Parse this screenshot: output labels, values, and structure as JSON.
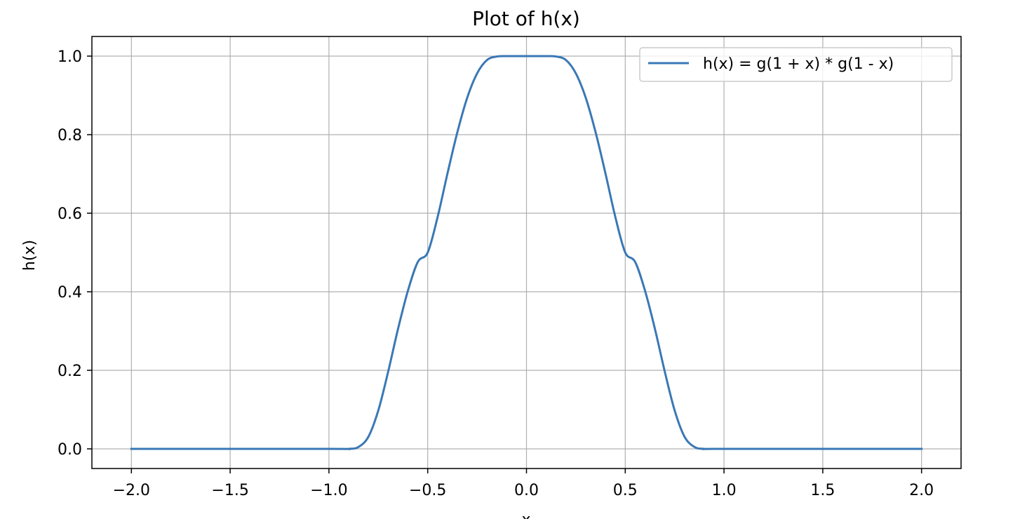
{
  "chart_data": {
    "type": "line",
    "title": "Plot of h(x)",
    "xlabel": "x",
    "ylabel": "h(x)",
    "xlim": [
      -2.2,
      2.2
    ],
    "ylim": [
      -0.05,
      1.05
    ],
    "xticks": [
      -2.0,
      -1.5,
      -1.0,
      -0.5,
      0.0,
      0.5,
      1.0,
      1.5,
      2.0
    ],
    "xtick_labels": [
      "−2.0",
      "−1.5",
      "−1.0",
      "−0.5",
      "0.0",
      "0.5",
      "1.0",
      "1.5",
      "2.0"
    ],
    "yticks": [
      0.0,
      0.2,
      0.4,
      0.6,
      0.8,
      1.0
    ],
    "ytick_labels": [
      "0.0",
      "0.2",
      "0.4",
      "0.6",
      "0.8",
      "1.0"
    ],
    "grid": true,
    "legend_position": "upper right",
    "series": [
      {
        "name": "h(x) = g(1 + x) * g(1 - x)",
        "color": "#3a78b5",
        "x": [
          -2.0,
          -1.0,
          -0.9,
          -0.85,
          -0.8,
          -0.75,
          -0.7,
          -0.65,
          -0.6,
          -0.55,
          -0.5,
          -0.45,
          -0.4,
          -0.35,
          -0.3,
          -0.25,
          -0.2,
          -0.15,
          -0.1,
          -0.05,
          0.0,
          0.05,
          0.1,
          0.15,
          0.2,
          0.25,
          0.3,
          0.35,
          0.4,
          0.45,
          0.5,
          0.55,
          0.6,
          0.65,
          0.7,
          0.75,
          0.8,
          0.85,
          0.9,
          1.0,
          2.0
        ],
        "y": [
          0.0,
          0.0,
          0.0,
          0.005,
          0.031,
          0.098,
          0.197,
          0.306,
          0.403,
          0.476,
          0.5,
          0.59,
          0.701,
          0.806,
          0.894,
          0.956,
          0.99,
          0.999,
          1.0,
          1.0,
          1.0,
          1.0,
          1.0,
          0.999,
          0.99,
          0.956,
          0.894,
          0.806,
          0.701,
          0.59,
          0.5,
          0.476,
          0.403,
          0.306,
          0.197,
          0.098,
          0.031,
          0.005,
          0.0,
          0.0,
          0.0
        ]
      }
    ]
  }
}
